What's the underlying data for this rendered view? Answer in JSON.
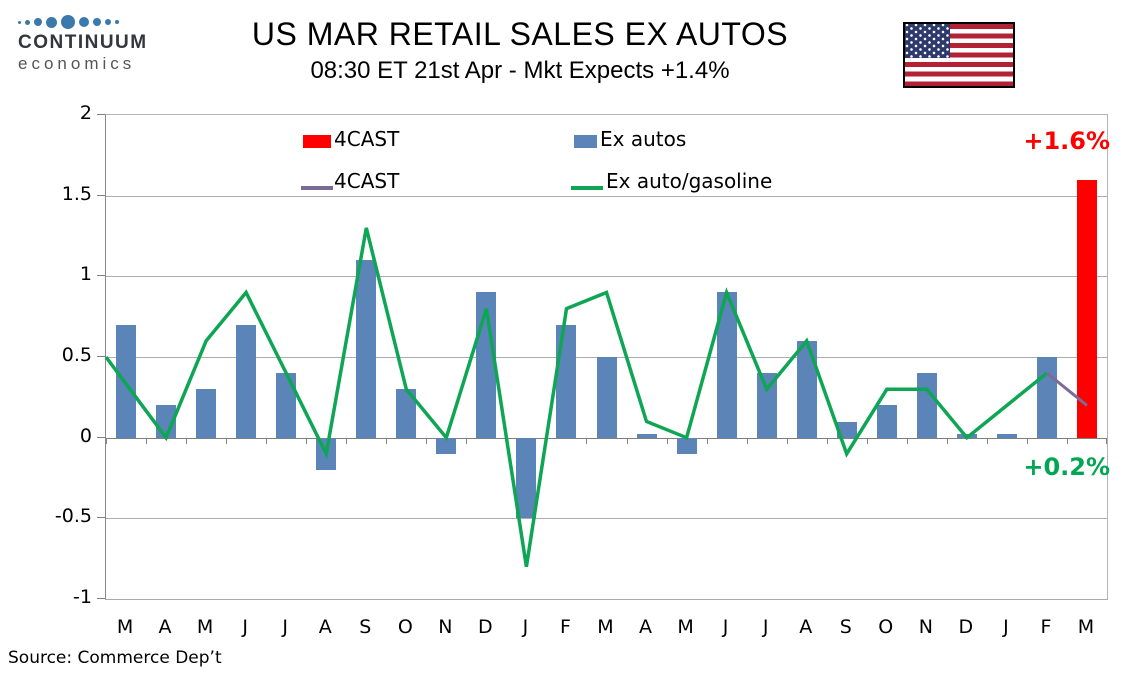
{
  "logo": {
    "line1": "CONTINUUM",
    "line2": "economics",
    "dot_color": "#3A79AC"
  },
  "header": {
    "title": "US MAR RETAIL SALES EX AUTOS",
    "subtitle": "08:30 ET 21st Apr - Mkt Expects +1.4%"
  },
  "flag": {
    "name": "us-flag"
  },
  "legend": {
    "items": [
      {
        "label": "4CAST",
        "swatch": "bar",
        "color": "#FF0000"
      },
      {
        "label": "4CAST",
        "swatch": "line",
        "color": "#7D6B96"
      },
      {
        "label": "Ex autos",
        "swatch": "bar",
        "color": "#5B84B8"
      },
      {
        "label": "Ex auto/gasoline",
        "swatch": "line",
        "color": "#0EA655"
      }
    ]
  },
  "annotations": {
    "forecast_bar_label": "+1.6%",
    "forecast_bar_color": "#FF0000",
    "forecast_line_label": "+0.2%",
    "forecast_line_color": "#00A651"
  },
  "source": "Source: Commerce Dep’t",
  "chart_data": {
    "type": "bar",
    "subtype": "bar+line combo, monthly percent change",
    "categories": [
      "M",
      "A",
      "M",
      "J",
      "J",
      "A",
      "S",
      "O",
      "N",
      "D",
      "J",
      "F",
      "M",
      "A",
      "M",
      "J",
      "J",
      "A",
      "S",
      "O",
      "N",
      "D",
      "J",
      "F",
      "M"
    ],
    "series": [
      {
        "name": "Ex autos",
        "type": "bar",
        "color": "#5B84B8",
        "values": [
          0.7,
          0.2,
          0.3,
          0.7,
          0.4,
          -0.2,
          1.1,
          0.3,
          -0.1,
          0.9,
          -0.5,
          0.7,
          0.5,
          0.02,
          -0.1,
          0.9,
          0.4,
          0.6,
          0.1,
          0.2,
          0.4,
          0.02,
          0.02,
          0.5,
          null
        ]
      },
      {
        "name": "4CAST",
        "type": "bar",
        "color": "#FF0000",
        "values": [
          null,
          null,
          null,
          null,
          null,
          null,
          null,
          null,
          null,
          null,
          null,
          null,
          null,
          null,
          null,
          null,
          null,
          null,
          null,
          null,
          null,
          null,
          null,
          null,
          1.6
        ]
      },
      {
        "name": "Ex auto/gasoline",
        "type": "line",
        "color": "#0EA655",
        "stroke_width": 3.5,
        "first_point_at_left_edge": true,
        "values": [
          0.5,
          0.0,
          0.6,
          0.9,
          0.4,
          -0.1,
          1.3,
          0.3,
          0.0,
          0.8,
          -0.8,
          0.8,
          0.9,
          0.1,
          0.0,
          0.9,
          0.3,
          0.6,
          -0.1,
          0.3,
          0.3,
          0.0,
          0.2,
          0.4,
          null
        ]
      },
      {
        "name": "4CAST",
        "type": "line",
        "color": "#7D6B96",
        "stroke_width": 3,
        "values": [
          null,
          null,
          null,
          null,
          null,
          null,
          null,
          null,
          null,
          null,
          null,
          null,
          null,
          null,
          null,
          null,
          null,
          null,
          null,
          null,
          null,
          null,
          null,
          0.4,
          0.2
        ]
      }
    ],
    "ylim": [
      -1,
      2
    ],
    "ytick_step": 0.5,
    "yticks": [
      "2",
      "1.5",
      "1",
      "0.5",
      "0",
      "-0.5",
      "-1"
    ],
    "grid": true,
    "legend_position": "inside top",
    "xlabel": "",
    "ylabel": ""
  }
}
